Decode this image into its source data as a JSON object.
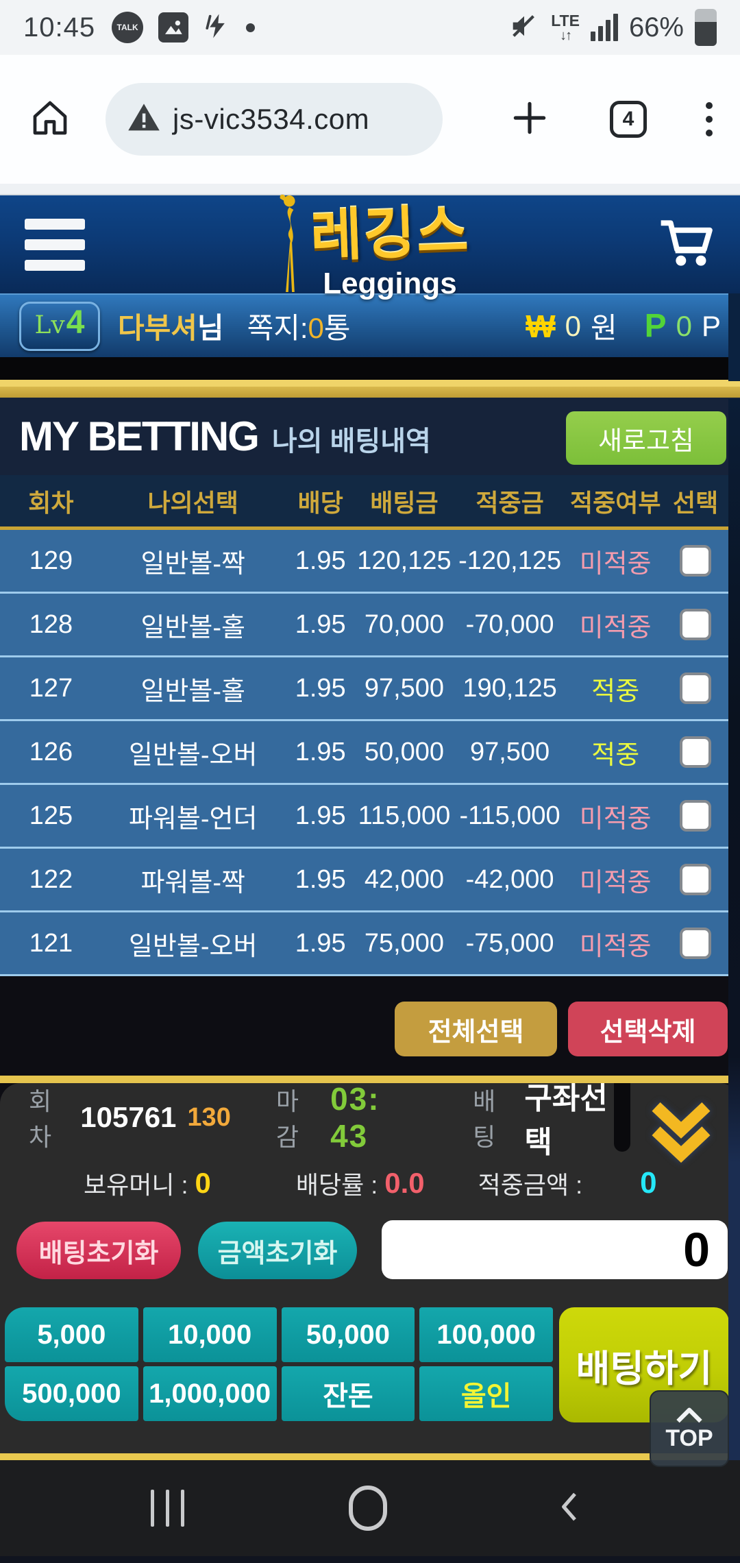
{
  "status_bar": {
    "time": "10:45",
    "network": "LTE",
    "battery": "66%"
  },
  "browser": {
    "url": "js-vic3534.com",
    "tab_count": "4"
  },
  "header": {
    "logo_kr": "레깅스",
    "logo_en": "Leggings"
  },
  "user_bar": {
    "level_label": "Lv",
    "level": "4",
    "username": "다부셔",
    "honorific": "님",
    "message_label": "쪽지:",
    "message_count": "0",
    "message_unit": "통",
    "won_symbol": "₩",
    "won_value": "0",
    "won_unit": "원",
    "point_symbol": "P",
    "point_value": "0",
    "point_unit": "P"
  },
  "my_betting": {
    "title": "MY BETTING",
    "subtitle": "나의 배팅내역",
    "refresh_label": "새로고침",
    "table": {
      "headers": [
        "회차",
        "나의선택",
        "배당",
        "배팅금",
        "적중금",
        "적중여부",
        "선택"
      ],
      "rows": [
        {
          "round": "129",
          "pick": "일반볼-짝",
          "odds": "1.95",
          "bet": "120,125",
          "result": "-120,125",
          "status": "미적중",
          "hit": false
        },
        {
          "round": "128",
          "pick": "일반볼-홀",
          "odds": "1.95",
          "bet": "70,000",
          "result": "-70,000",
          "status": "미적중",
          "hit": false
        },
        {
          "round": "127",
          "pick": "일반볼-홀",
          "odds": "1.95",
          "bet": "97,500",
          "result": "190,125",
          "status": "적중",
          "hit": true
        },
        {
          "round": "126",
          "pick": "일반볼-오버",
          "odds": "1.95",
          "bet": "50,000",
          "result": "97,500",
          "status": "적중",
          "hit": true
        },
        {
          "round": "125",
          "pick": "파워볼-언더",
          "odds": "1.95",
          "bet": "115,000",
          "result": "-115,000",
          "status": "미적중",
          "hit": false
        },
        {
          "round": "122",
          "pick": "파워볼-짝",
          "odds": "1.95",
          "bet": "42,000",
          "result": "-42,000",
          "status": "미적중",
          "hit": false
        },
        {
          "round": "121",
          "pick": "일반볼-오버",
          "odds": "1.95",
          "bet": "75,000",
          "result": "-75,000",
          "status": "미적중",
          "hit": false
        }
      ]
    },
    "select_all_label": "전체선택",
    "delete_selected_label": "선택삭제"
  },
  "bet_panel": {
    "round_label": "회차",
    "round_value": "105761",
    "next_round": "130",
    "deadline_label": "마감",
    "deadline_time": "03: 43",
    "bet_label": "배팅",
    "account_select": "구좌선택",
    "balance_label": "보유머니 :",
    "balance_value": "0",
    "odds_label": "배당률 :",
    "odds_value": "0.0",
    "winnings_label": "적중금액 :",
    "winnings_value": "0",
    "reset_bet_label": "배팅초기화",
    "reset_amount_label": "금액초기화",
    "amount_input_value": "0",
    "amounts": [
      {
        "label": "5,000"
      },
      {
        "label": "10,000"
      },
      {
        "label": "50,000"
      },
      {
        "label": "100,000"
      },
      {
        "label": "500,000"
      },
      {
        "label": "1,000,000"
      },
      {
        "label": "잔돈"
      },
      {
        "label": "올인",
        "highlight": true
      }
    ],
    "bet_submit_label": "배팅하기",
    "top_label": "TOP"
  },
  "colors": {
    "header_blue": "#0c3a76",
    "row_blue": "#356a9d",
    "table_gold": "#c9a435",
    "hit": "#eaf93f",
    "miss": "#f49cae",
    "teal": "#0fa0a6",
    "bet_green": "#c6d407",
    "accent_yellow": "#ffd515",
    "accent_red": "#f2606b",
    "accent_cyan": "#25e8f8"
  }
}
